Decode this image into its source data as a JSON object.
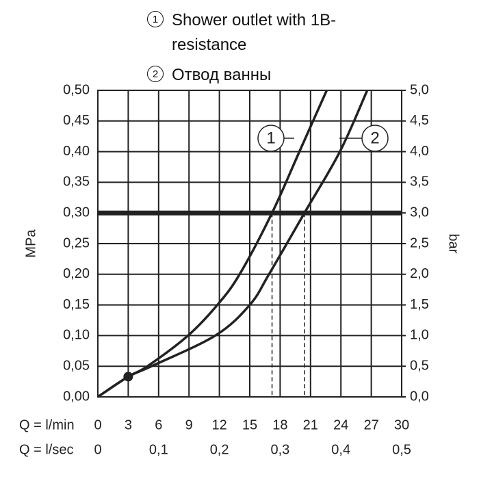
{
  "chart_data": {
    "type": "line",
    "series": [
      {
        "name": "Shower outlet with 1B-resistance",
        "label": "1",
        "color": "#222",
        "x": [
          0,
          3,
          4.9,
          8.9,
          11.8,
          14,
          17.2,
          19.9,
          22.6
        ],
        "values": [
          0,
          0.033,
          0.05,
          0.1,
          0.15,
          0.2,
          0.3,
          0.4,
          0.5
        ]
      },
      {
        "name": "Отвод ванны",
        "label": "2",
        "color": "#222",
        "x": [
          0,
          3,
          5.3,
          11.6,
          15,
          16.9,
          20.4,
          23.9,
          26.6
        ],
        "values": [
          0,
          0.033,
          0.05,
          0.1,
          0.15,
          0.2,
          0.3,
          0.4,
          0.5
        ]
      }
    ],
    "ylabel": "MPa",
    "y2label": "bar",
    "xlabel": "Q = l/min",
    "x2label": "Q = l/sec",
    "xlim": [
      0,
      30
    ],
    "xticks": [
      0,
      3,
      6,
      9,
      12,
      15,
      18,
      21,
      24,
      27,
      30
    ],
    "x2lim": [
      0,
      0.5
    ],
    "x2ticks": [
      0,
      {
        "value": 0.1,
        "label": "0,1"
      },
      {
        "value": 0.2,
        "label": "0,2"
      },
      {
        "value": 0.3,
        "label": "0,3"
      },
      {
        "value": 0.4,
        "label": "0,4"
      },
      {
        "value": 0.5,
        "label": "0,5"
      }
    ],
    "ylim": [
      0,
      0.5
    ],
    "yticks": [
      {
        "value": 0,
        "label": "0,00"
      },
      {
        "value": 0.05,
        "label": "0,05"
      },
      {
        "value": 0.1,
        "label": "0,10"
      },
      {
        "value": 0.15,
        "label": "0,15"
      },
      {
        "value": 0.2,
        "label": "0,20"
      },
      {
        "value": 0.25,
        "label": "0,25"
      },
      {
        "value": 0.3,
        "label": "0,30"
      },
      {
        "value": 0.35,
        "label": "0,35"
      },
      {
        "value": 0.4,
        "label": "0,40"
      },
      {
        "value": 0.45,
        "label": "0,45"
      },
      {
        "value": 0.5,
        "label": "0,50"
      }
    ],
    "y2lim": [
      0,
      5
    ],
    "y2ticks": [
      {
        "value": 0,
        "label": "0,0"
      },
      {
        "value": 0.5,
        "label": "0,5"
      },
      {
        "value": 1,
        "label": "1,0"
      },
      {
        "value": 1.5,
        "label": "1,5"
      },
      {
        "value": 2,
        "label": "2,0"
      },
      {
        "value": 2.5,
        "label": "2,5"
      },
      {
        "value": 3,
        "label": "3,0"
      },
      {
        "value": 3.5,
        "label": "3,5"
      },
      {
        "value": 4,
        "label": "4,0"
      },
      {
        "value": 4.5,
        "label": "4,5"
      },
      {
        "value": 5,
        "label": "5,0"
      }
    ],
    "reference_line": 0.3,
    "marker": {
      "x": 3,
      "y": 0.033
    },
    "grid": true
  }
}
